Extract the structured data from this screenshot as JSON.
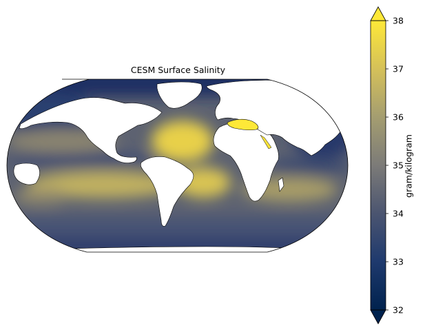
{
  "map": {
    "title": "CESM Surface Salinity",
    "projection": "Robinson",
    "variable": "surface salinity",
    "source_model": "CESM"
  },
  "colorbar": {
    "label": "gram/kilogram",
    "colormap": "cividis",
    "min": 32,
    "max": 38,
    "extend": "both",
    "ticks": [
      "32",
      "33",
      "34",
      "35",
      "36",
      "37",
      "38"
    ]
  },
  "colors": {
    "low": "#00224e",
    "mid": "#7c7b78",
    "high": "#fee838",
    "land": "#ffffff",
    "coastline": "#000000"
  }
}
